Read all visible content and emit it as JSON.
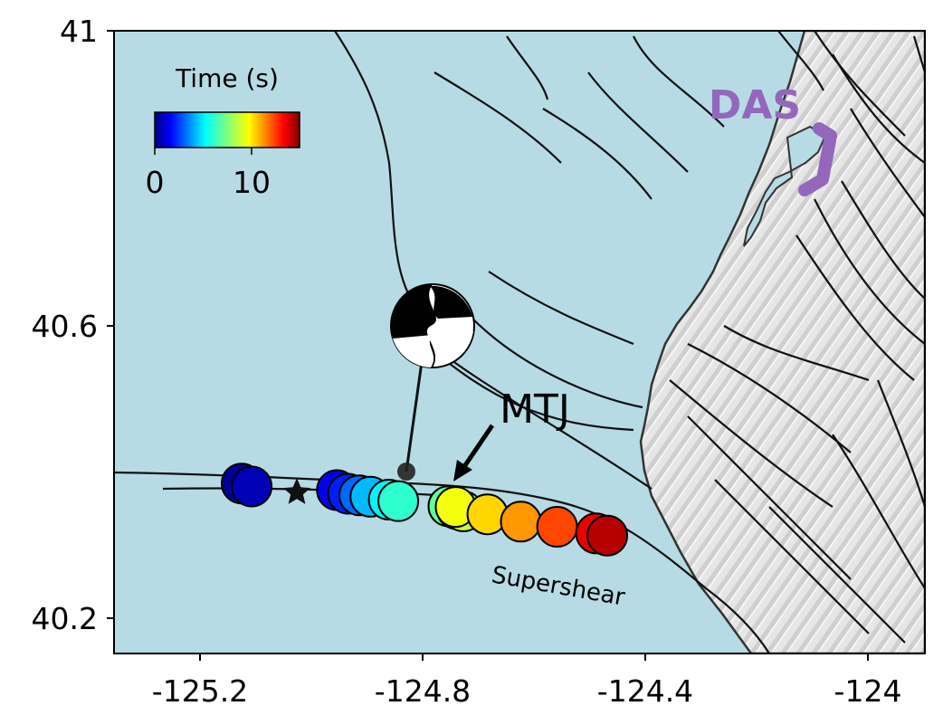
{
  "map": {
    "x_ticks": [
      "-125.2",
      "-124.8",
      "-124.4",
      "-124"
    ],
    "y_ticks": [
      "41",
      "40.6",
      "40.2"
    ],
    "x_range": [
      -125.355,
      -123.9
    ],
    "y_range": [
      40.15,
      41.0
    ]
  },
  "colorbar": {
    "title": "Time (s)",
    "tick_labels": [
      "0",
      "10"
    ],
    "range": [
      0,
      15
    ],
    "colormap": "jet"
  },
  "labels": {
    "das": "DAS",
    "mtj": "MTJ",
    "supershear": "Supershear"
  },
  "colors": {
    "ocean": "#b7dbe4",
    "land": "#e9e9e9",
    "fault": "#111111",
    "das": "#9467bd",
    "arrow": "#000000"
  },
  "epicenter": {
    "lon": -125.04,
    "lat": 40.376
  },
  "events": [
    {
      "lon": -125.126,
      "lat": 40.382,
      "time": 0.3
    },
    {
      "lon": -125.108,
      "lat": 40.378,
      "time": 0.8
    },
    {
      "lon": -124.955,
      "lat": 40.373,
      "time": 1.6
    },
    {
      "lon": -124.935,
      "lat": 40.368,
      "time": 2.3
    },
    {
      "lon": -124.915,
      "lat": 40.366,
      "time": 3.4
    },
    {
      "lon": -124.895,
      "lat": 40.364,
      "time": 4.6
    },
    {
      "lon": -124.862,
      "lat": 40.36,
      "time": 5.5
    },
    {
      "lon": -124.845,
      "lat": 40.358,
      "time": 6.3
    },
    {
      "lon": -124.755,
      "lat": 40.351,
      "time": 7.1
    },
    {
      "lon": -124.74,
      "lat": 40.347,
      "time": 7.8
    },
    {
      "lon": -124.728,
      "lat": 40.344,
      "time": 8.6
    },
    {
      "lon": -124.742,
      "lat": 40.35,
      "time": 9.2
    },
    {
      "lon": -124.685,
      "lat": 40.34,
      "time": 10.0
    },
    {
      "lon": -124.625,
      "lat": 40.33,
      "time": 10.9
    },
    {
      "lon": -124.56,
      "lat": 40.323,
      "time": 12.1
    },
    {
      "lon": -124.49,
      "lat": 40.314,
      "time": 13.4
    },
    {
      "lon": -124.47,
      "lat": 40.311,
      "time": 14.2
    }
  ]
}
